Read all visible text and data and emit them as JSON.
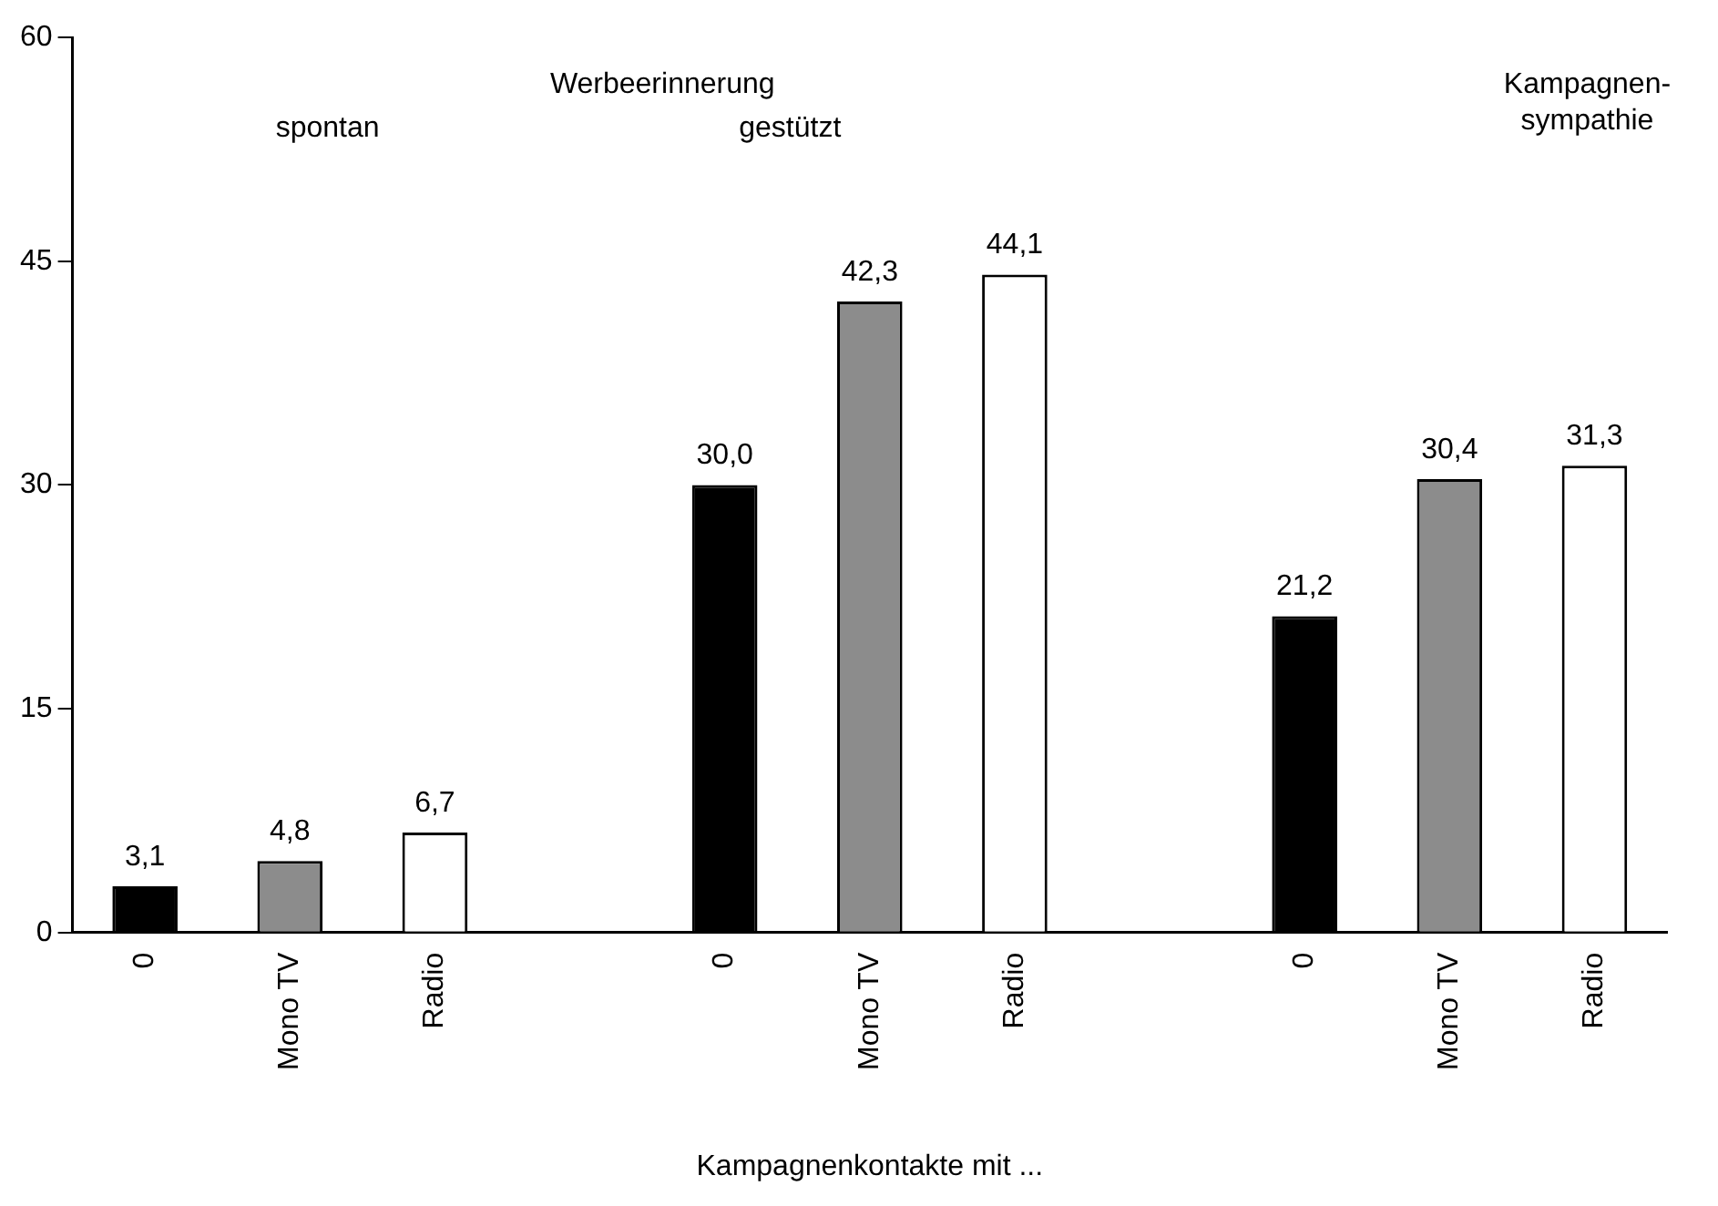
{
  "chart_data": {
    "type": "bar",
    "xlabel": "Kampagnenkontakte mit ...",
    "categories": [
      "0",
      "Mono TV",
      "Radio",
      null,
      "0",
      "Mono TV",
      "Radio",
      null,
      "0",
      "Mono TV",
      "Radio"
    ],
    "values": [
      3.1,
      4.8,
      6.7,
      null,
      30.0,
      42.3,
      44.1,
      null,
      21.2,
      30.4,
      31.3
    ],
    "colors": [
      "#000000",
      "#8c8c8c",
      "#ffffff",
      null,
      "#000000",
      "#8c8c8c",
      "#ffffff",
      null,
      "#000000",
      "#8c8c8c",
      "#ffffff"
    ],
    "value_labels": [
      "3,1",
      "4,8",
      "6,7",
      null,
      "30,0",
      "42,3",
      "44,1",
      null,
      "21,2",
      "30,4",
      "31,3"
    ],
    "annotations": [
      "Werbeerinnerung",
      "spontan",
      "gestützt",
      "Kampagnen-\nsympathie"
    ],
    "ylim": [
      0,
      60
    ],
    "yticks": [
      0,
      15,
      30,
      45,
      60
    ],
    "grid": false,
    "legend": false
  }
}
